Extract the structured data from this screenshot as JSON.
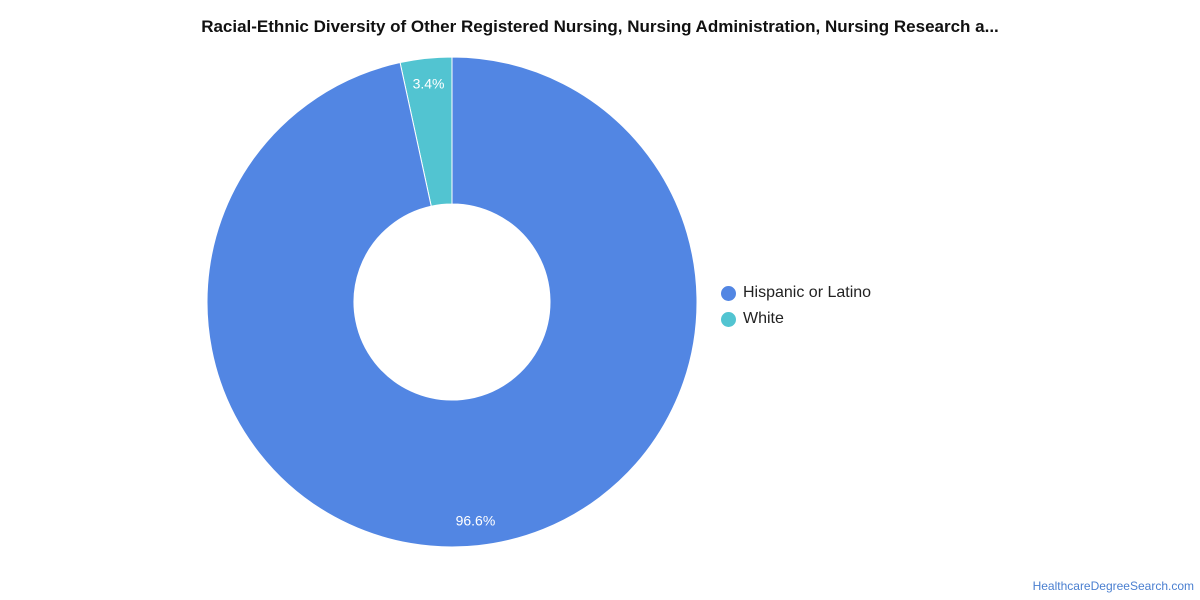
{
  "chart_data": {
    "type": "pie",
    "title": "Racial-Ethnic Diversity of Other Registered Nursing, Nursing Administration, Nursing Research a...",
    "donut": true,
    "slices": [
      {
        "label": "Hispanic or Latino",
        "value": 96.6,
        "display": "96.6%",
        "color": "#5286e3"
      },
      {
        "label": "White",
        "value": 3.4,
        "display": "3.4%",
        "color": "#52c4d1"
      }
    ],
    "legend_position": "right"
  },
  "source": "HealthcareDegreeSearch.com"
}
